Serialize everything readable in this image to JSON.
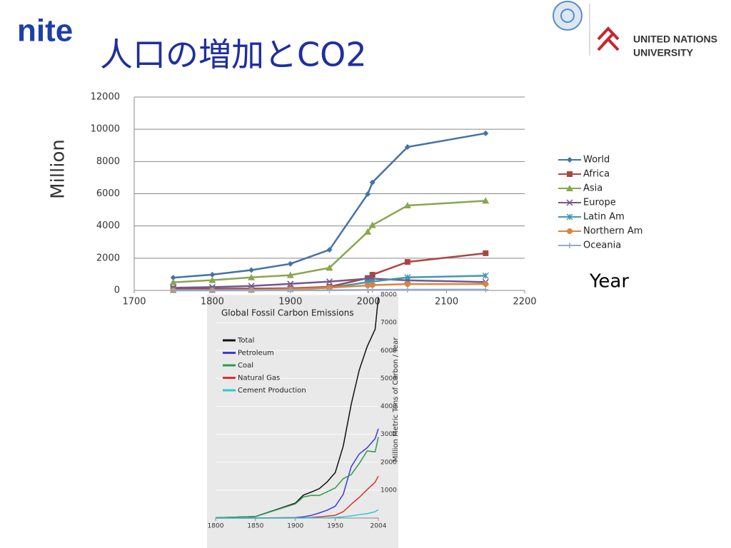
{
  "header": {
    "logo": "nite",
    "title": "人口の増加とCO2",
    "partner": "UNITED NATIONS",
    "partner_line2": "UNIVERSITY"
  },
  "chart_data": [
    {
      "type": "line",
      "ylabel": "Million",
      "xlabel": "Year",
      "x": [
        1750,
        1800,
        1850,
        1900,
        1950,
        1999,
        2005,
        2050,
        2150
      ],
      "xlim": [
        1700,
        2200
      ],
      "xticks": [
        1700,
        1800,
        1900,
        2000,
        2100,
        2200
      ],
      "ylim": [
        0,
        12000
      ],
      "yticks": [
        0,
        2000,
        4000,
        6000,
        8000,
        10000,
        12000
      ],
      "grid": true,
      "series": [
        {
          "name": "World",
          "color": "#4572a7",
          "marker": "diamond",
          "values": [
            790,
            980,
            1260,
            1650,
            2520,
            5980,
            6700,
            8900,
            9750
          ]
        },
        {
          "name": "Africa",
          "color": "#aa4643",
          "marker": "square",
          "values": [
            106,
            107,
            111,
            133,
            221,
            767,
            973,
            1766,
            2308
          ]
        },
        {
          "name": "Asia",
          "color": "#89a54e",
          "marker": "triangle",
          "values": [
            502,
            635,
            809,
            947,
            1402,
            3634,
            4050,
            5268,
            5561
          ]
        },
        {
          "name": "Europe",
          "color": "#71588f",
          "marker": "x",
          "values": [
            163,
            203,
            276,
            408,
            547,
            729,
            730,
            628,
            517
          ]
        },
        {
          "name": "Latin Am",
          "color": "#4198af",
          "marker": "star",
          "values": [
            16,
            24,
            38,
            74,
            167,
            511,
            550,
            809,
            912
          ]
        },
        {
          "name": "Northern Am",
          "color": "#db843d",
          "marker": "circle",
          "values": [
            2,
            7,
            26,
            82,
            172,
            307,
            330,
            392,
            398
          ]
        },
        {
          "name": "Oceania",
          "color": "#93a9cf",
          "marker": "plus",
          "values": [
            2,
            2,
            2,
            6,
            13,
            30,
            32,
            46,
            51
          ]
        }
      ]
    },
    {
      "type": "line",
      "title": "Global Fossil Carbon Emissions",
      "ylabel": "Million Metric Tons of Carbon / Year",
      "x": [
        1800,
        1850,
        1900,
        1910,
        1920,
        1930,
        1940,
        1950,
        1960,
        1970,
        1980,
        1990,
        2000,
        2004
      ],
      "xlim": [
        1800,
        2004
      ],
      "xticks": [
        1800,
        1850,
        1900,
        1950,
        2004
      ],
      "ylim": [
        0,
        8000
      ],
      "yticks": [
        1000,
        2000,
        3000,
        4000,
        5000,
        6000,
        7000,
        8000
      ],
      "grid": true,
      "series": [
        {
          "name": "Total",
          "color": "#111111",
          "values": [
            8,
            54,
            534,
            819,
            932,
            1053,
            1299,
            1630,
            2577,
            4076,
            5297,
            6143,
            6765,
            7910
          ]
        },
        {
          "name": "Petroleum",
          "color": "#3b3bdc",
          "values": [
            0,
            0,
            16,
            43,
            95,
            182,
            283,
            423,
            850,
            1839,
            2293,
            2517,
            2846,
            3200
          ]
        },
        {
          "name": "Coal",
          "color": "#2e9a4a",
          "values": [
            8,
            54,
            507,
            755,
            811,
            809,
            940,
            1078,
            1410,
            1556,
            1951,
            2405,
            2367,
            2900
          ]
        },
        {
          "name": "Natural Gas",
          "color": "#e03030",
          "values": [
            0,
            0,
            3,
            8,
            20,
            40,
            70,
            97,
            227,
            493,
            738,
            1017,
            1287,
            1500
          ]
        },
        {
          "name": "Cement Production",
          "color": "#30c8d0",
          "values": [
            0,
            0,
            0,
            1,
            3,
            5,
            7,
            18,
            43,
            78,
            120,
            157,
            226,
            300
          ]
        }
      ]
    }
  ]
}
